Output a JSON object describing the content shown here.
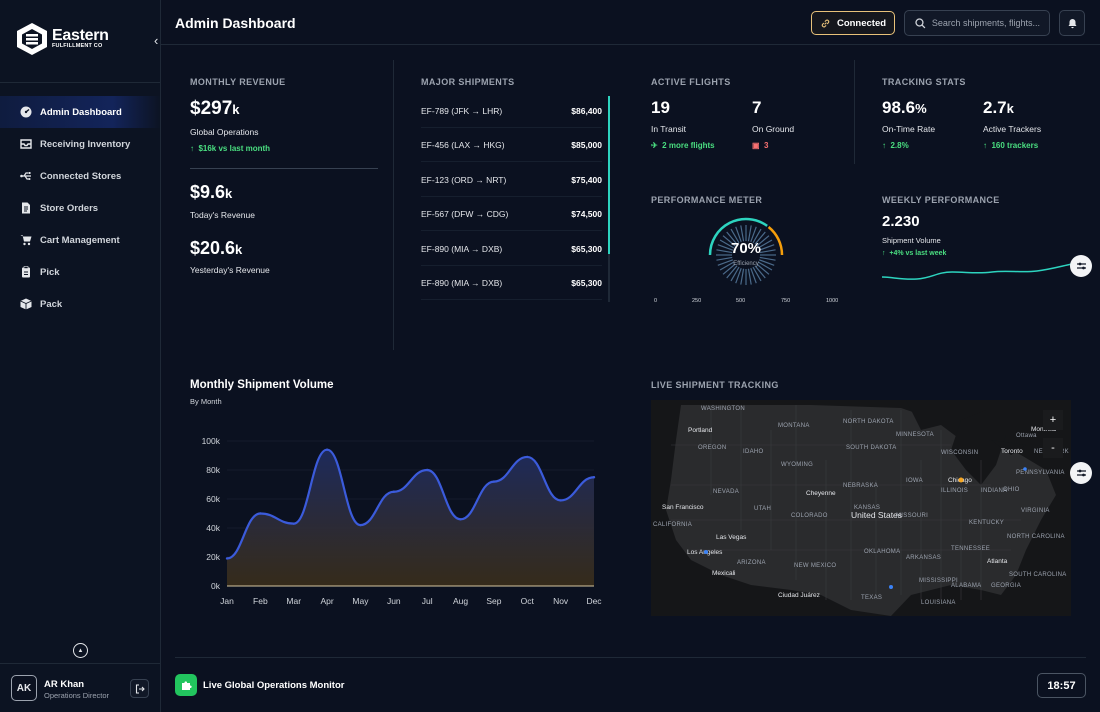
{
  "brand": {
    "name": "Eastern",
    "tagline": "FULFILLMENT CO"
  },
  "header": {
    "title": "Admin Dashboard",
    "connected_label": "Connected",
    "search_placeholder": "Search shipments, flights..."
  },
  "sidebar": {
    "items": [
      {
        "label": "Admin Dashboard",
        "icon": "dashboard-icon",
        "active": true
      },
      {
        "label": "Receiving Inventory",
        "icon": "inbox-icon"
      },
      {
        "label": "Connected Stores",
        "icon": "usb-icon"
      },
      {
        "label": "Store Orders",
        "icon": "document-icon"
      },
      {
        "label": "Cart Management",
        "icon": "cart-icon"
      },
      {
        "label": "Pick",
        "icon": "clipboard-icon"
      },
      {
        "label": "Pack",
        "icon": "box-icon"
      }
    ]
  },
  "user": {
    "initials": "AK",
    "name": "AR Khan",
    "role": "Operations Director"
  },
  "revenue": {
    "label": "MONTHLY REVENUE",
    "value": "$297",
    "unit": "k",
    "caption": "Global Operations",
    "change": "$16k vs last month",
    "today_value": "$9.6",
    "today_unit": "k",
    "today_caption": "Today's Revenue",
    "yesterday_value": "$20.6",
    "yesterday_unit": "k",
    "yesterday_caption": "Yesterday's Revenue"
  },
  "shipments": {
    "label": "MAJOR SHIPMENTS",
    "rows": [
      {
        "id": "EF-789 (JFK → LHR)",
        "amount": "$86,400"
      },
      {
        "id": "EF-456 (LAX → HKG)",
        "amount": "$85,000"
      },
      {
        "id": "EF-123 (ORD → NRT)",
        "amount": "$75,400"
      },
      {
        "id": "EF-567 (DFW → CDG)",
        "amount": "$74,500"
      },
      {
        "id": "EF-890 (MIA → DXB)",
        "amount": "$65,300"
      },
      {
        "id": "EF-890 (MIA → DXB)",
        "amount": "$65,300"
      }
    ]
  },
  "flights": {
    "label": "ACTIVE FLIGHTS",
    "transit_value": "19",
    "transit_caption": "In Transit",
    "transit_note": "2 more flights",
    "ground_value": "7",
    "ground_caption": "On Ground",
    "ground_note": "3"
  },
  "tracking": {
    "label": "TRACKING STATS",
    "ontime_value": "98.6",
    "ontime_unit": "%",
    "ontime_caption": "On-Time Rate",
    "ontime_note": "2.8%",
    "trackers_value": "2.7",
    "trackers_unit": "k",
    "trackers_caption": "Active Trackers",
    "trackers_note": "160 trackers"
  },
  "meter": {
    "label": "PERFORMANCE METER",
    "value": "70%",
    "caption": "Efficiency",
    "level": 0.7,
    "ticks": [
      "0",
      "250",
      "500",
      "750",
      "1000"
    ]
  },
  "weekly": {
    "label": "WEEKLY PERFORMANCE",
    "value": "2.230",
    "caption": "Shipment Volume",
    "note": "+4% vs last week"
  },
  "chart": {
    "title": "Monthly Shipment Volume",
    "subtitle": "By Month"
  },
  "chart_data": {
    "type": "area",
    "title": "Monthly Shipment Volume",
    "subtitle": "By Month",
    "categories": [
      "Jan",
      "Feb",
      "Mar",
      "Apr",
      "May",
      "Jun",
      "Jul",
      "Aug",
      "Sep",
      "Oct",
      "Nov",
      "Dec"
    ],
    "series": [
      {
        "values": [
          19000,
          50000,
          43000,
          94000,
          42000,
          65000,
          80000,
          46000,
          72000,
          89000,
          59000,
          75000
        ]
      }
    ],
    "yticks": [
      "0k",
      "20k",
      "40k",
      "60k",
      "80k",
      "100k"
    ],
    "ylim": [
      0,
      100000
    ],
    "grid": true,
    "line_color": "#3b5bdb"
  },
  "map": {
    "title": "LIVE SHIPMENT TRACKING",
    "regions": [
      "WASHINGTON",
      "MONTANA",
      "NORTH DAKOTA",
      "MINNESOTA",
      "OREGON",
      "IDAHO",
      "SOUTH DAKOTA",
      "WISCONSIN",
      "WYOMING",
      "IOWA",
      "NEBRASKA",
      "NEVADA",
      "UTAH",
      "COLORADO",
      "KANSAS",
      "MISSOURI",
      "ILLINOIS",
      "INDIANA",
      "OHIO",
      "PENNSYLVANIA",
      "NEW YORK",
      "KENTUCKY",
      "VIRGINIA",
      "ARIZONA",
      "NEW MEXICO",
      "OKLAHOMA",
      "ARKANSAS",
      "TENNESSEE",
      "NORTH CAROLINA",
      "SOUTH CAROLINA",
      "MISSISSIPPI",
      "ALABAMA",
      "GEORGIA",
      "TEXAS",
      "LOUISIANA",
      "CALIFORNIA",
      "Ottawa"
    ],
    "cities": [
      "Portland",
      "Toronto",
      "Chicago",
      "Cheyenne",
      "San Francisco",
      "Las Vegas",
      "Los Angeles",
      "Mexicali",
      "Atlanta",
      "Ciudad Juárez",
      "United States",
      "Montreal"
    ],
    "zoom_in": "+",
    "zoom_out": "-"
  },
  "footer": {
    "monitor": "Live Global Operations Monitor",
    "time": "18:57"
  }
}
